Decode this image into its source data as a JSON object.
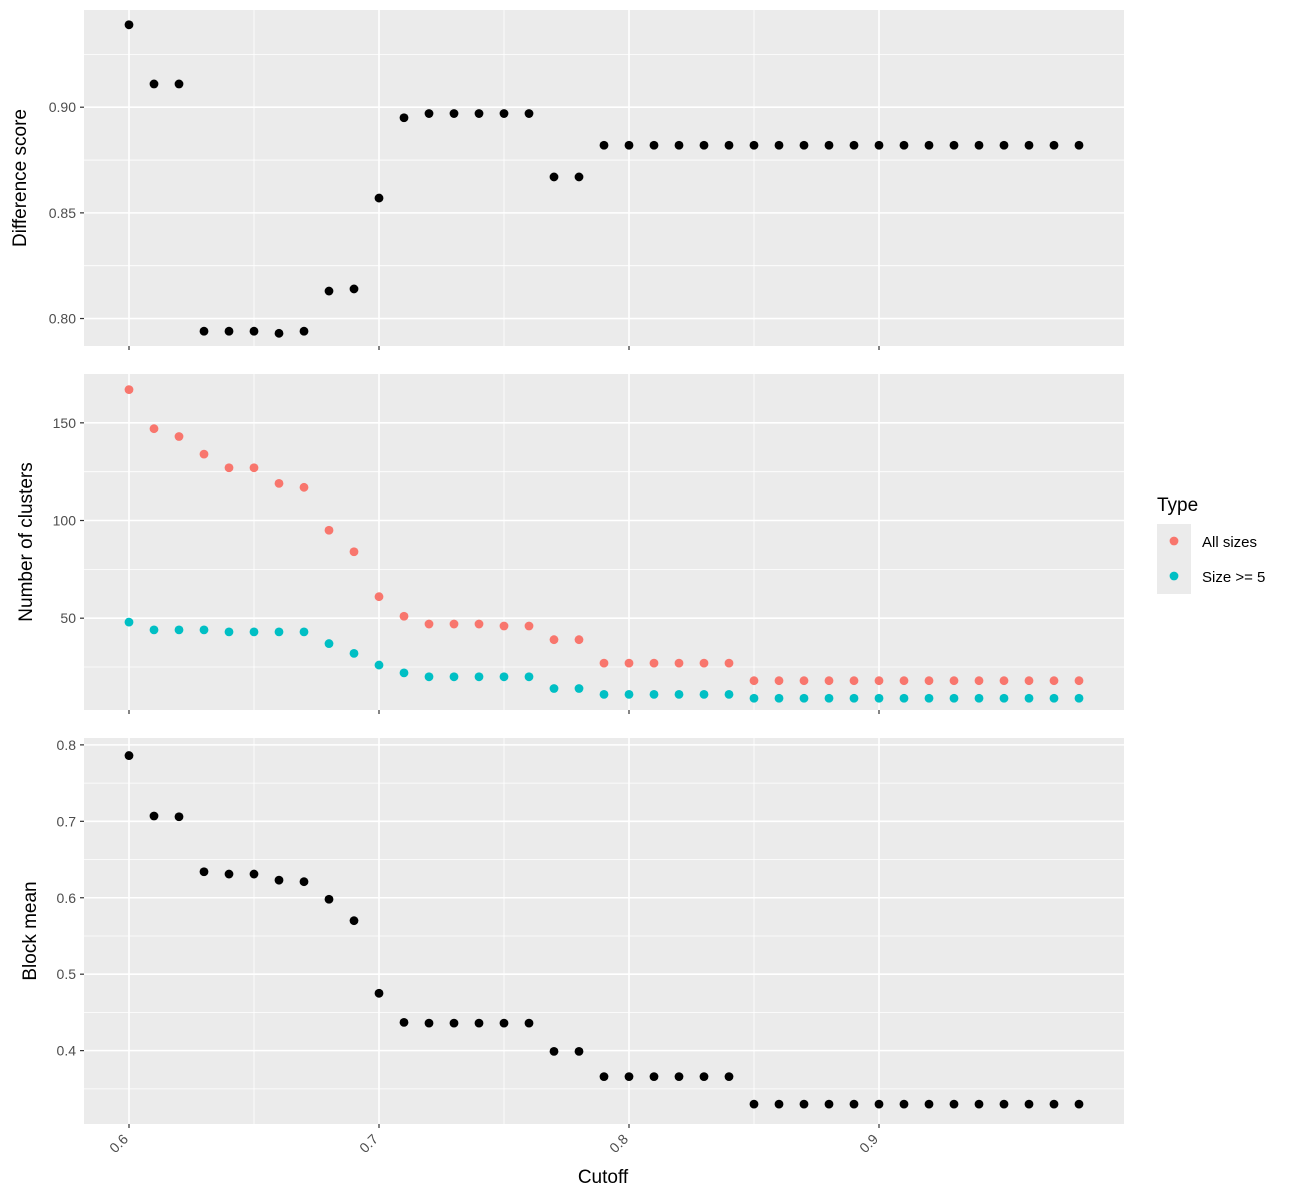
{
  "chart_data": {
    "type": "scatter",
    "xlabel": "Cutoff",
    "x_ticks": [
      "0.6",
      "0.7",
      "0.8",
      "0.9"
    ],
    "x_tick_values": [
      0.6,
      0.7,
      0.8,
      0.9
    ],
    "xlim": [
      0.582,
      0.998
    ],
    "x": [
      0.6,
      0.61,
      0.62,
      0.63,
      0.64,
      0.65,
      0.66,
      0.67,
      0.68,
      0.69,
      0.7,
      0.71,
      0.72,
      0.73,
      0.74,
      0.75,
      0.76,
      0.77,
      0.78,
      0.79,
      0.8,
      0.81,
      0.82,
      0.83,
      0.84,
      0.85,
      0.86,
      0.87,
      0.88,
      0.89,
      0.9,
      0.91,
      0.92,
      0.93,
      0.94,
      0.95,
      0.96,
      0.97,
      0.98
    ],
    "grid": "major and minor, white on grey",
    "legend": {
      "title": "Type",
      "placement": "right",
      "entries": [
        {
          "label": "All sizes",
          "color": "#F8766D"
        },
        {
          "label": "Size >= 5",
          "color": "#00BFC4"
        }
      ]
    },
    "panels": [
      {
        "ylabel": "Difference score",
        "ylim": [
          0.787,
          0.946
        ],
        "y_ticks": [
          "0.80",
          "0.85",
          "0.90"
        ],
        "y_tick_values": [
          0.8,
          0.85,
          0.9
        ],
        "series": [
          {
            "color": "#000000",
            "values": [
              0.939,
              0.911,
              0.911,
              0.794,
              0.794,
              0.794,
              0.793,
              0.794,
              0.813,
              0.814,
              0.857,
              0.895,
              0.897,
              0.897,
              0.897,
              0.897,
              0.897,
              0.867,
              0.867,
              0.882,
              0.882,
              0.882,
              0.882,
              0.882,
              0.882,
              0.882,
              0.882,
              0.882,
              0.882,
              0.882,
              0.882,
              0.882,
              0.882,
              0.882,
              0.882,
              0.882,
              0.882,
              0.882,
              0.882
            ]
          }
        ]
      },
      {
        "ylabel": "Number of clusters",
        "ylim": [
          3,
          175
        ],
        "y_ticks": [
          "50",
          "100",
          "150"
        ],
        "y_tick_values": [
          50,
          100,
          150
        ],
        "series": [
          {
            "name": "All sizes",
            "color": "#F8766D",
            "values": [
              167,
              147,
              143,
              134,
              127,
              127,
              119,
              117,
              95,
              84,
              61,
              51,
              47,
              47,
              47,
              46,
              46,
              39,
              39,
              27,
              27,
              27,
              27,
              27,
              27,
              18,
              18,
              18,
              18,
              18,
              18,
              18,
              18,
              18,
              18,
              18,
              18,
              18,
              18
            ]
          },
          {
            "name": "Size >= 5",
            "color": "#00BFC4",
            "values": [
              48,
              44,
              44,
              44,
              43,
              43,
              43,
              43,
              37,
              32,
              26,
              22,
              20,
              20,
              20,
              20,
              20,
              14,
              14,
              11,
              11,
              11,
              11,
              11,
              11,
              9,
              9,
              9,
              9,
              9,
              9,
              9,
              9,
              9,
              9,
              9,
              9,
              9,
              9
            ]
          }
        ]
      },
      {
        "ylabel": "Block mean",
        "ylim": [
          0.304,
          0.809
        ],
        "y_ticks": [
          "0.4",
          "0.5",
          "0.6",
          "0.7",
          "0.8"
        ],
        "y_tick_values": [
          0.4,
          0.5,
          0.6,
          0.7,
          0.8
        ],
        "series": [
          {
            "color": "#000000",
            "values": [
              0.786,
              0.707,
              0.706,
              0.634,
              0.631,
              0.631,
              0.623,
              0.621,
              0.598,
              0.57,
              0.475,
              0.437,
              0.436,
              0.436,
              0.436,
              0.436,
              0.436,
              0.399,
              0.399,
              0.366,
              0.366,
              0.366,
              0.366,
              0.366,
              0.366,
              0.33,
              0.33,
              0.33,
              0.33,
              0.33,
              0.33,
              0.33,
              0.33,
              0.33,
              0.33,
              0.33,
              0.33,
              0.33,
              0.33
            ]
          }
        ]
      }
    ]
  }
}
